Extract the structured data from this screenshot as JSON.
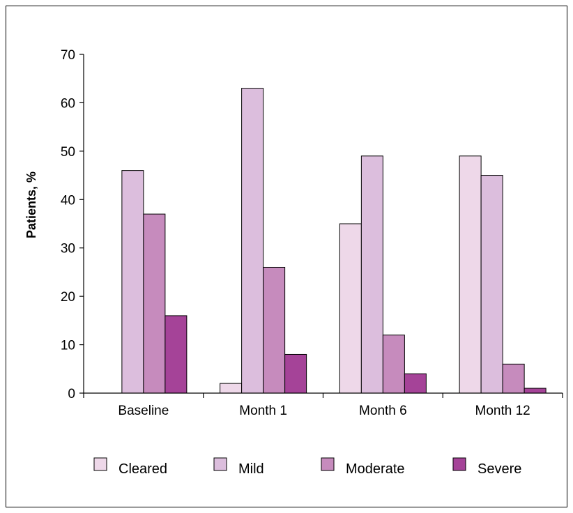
{
  "chart_data": {
    "type": "bar",
    "title": "",
    "xlabel": "",
    "ylabel": "Patients, %",
    "ylim": [
      0,
      70
    ],
    "yticks": [
      0,
      10,
      20,
      30,
      40,
      50,
      60,
      70
    ],
    "categories": [
      "Baseline",
      "Month 1",
      "Month 6",
      "Month 12"
    ],
    "series": [
      {
        "name": "Cleared",
        "color": "#eed8e9",
        "values": [
          0,
          2,
          35,
          49
        ]
      },
      {
        "name": "Mild",
        "color": "#dcbedd",
        "values": [
          46,
          63,
          49,
          45
        ]
      },
      {
        "name": "Moderate",
        "color": "#c68bbd",
        "values": [
          37,
          26,
          12,
          6
        ]
      },
      {
        "name": "Severe",
        "color": "#a54398",
        "values": [
          16,
          8,
          4,
          1
        ]
      }
    ],
    "legend_position": "bottom",
    "grid": false
  }
}
